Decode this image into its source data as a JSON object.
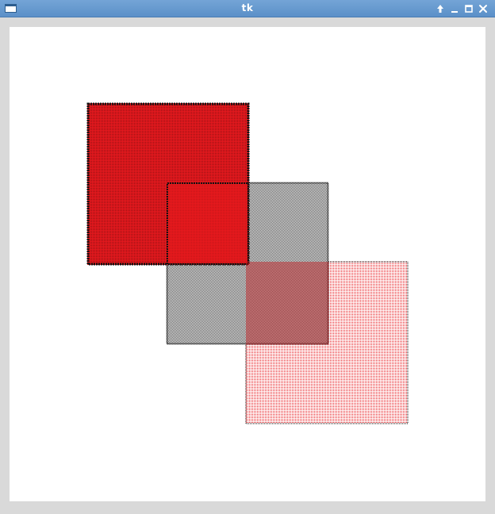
{
  "window": {
    "title": "tk"
  },
  "icons": {
    "menu": "window-menu-icon",
    "up": "up-arrow-icon",
    "minimize": "minimize-icon",
    "maximize": "maximize-icon",
    "close": "close-icon"
  },
  "canvas": {
    "background": "#ffffff",
    "shapes": [
      {
        "name": "stippled-rectangle-1",
        "fill": "#e8191e",
        "outline": "#000000",
        "stipple": "dense"
      },
      {
        "name": "stippled-rectangle-2",
        "fill": "#5a5a5a",
        "outline": "#000000",
        "stipple": "medium"
      },
      {
        "name": "stippled-rectangle-3",
        "fill": "#e8191e",
        "outline": "#000000",
        "stipple": "sparse"
      }
    ]
  }
}
